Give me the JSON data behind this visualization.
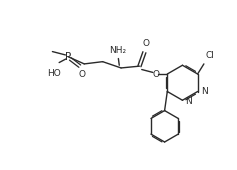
{
  "bg_color": "#ffffff",
  "line_color": "#2a2a2a",
  "lw": 1.0,
  "fs": 6.5,
  "xlim": [
    0,
    10.5
  ],
  "ylim": [
    0,
    7.5
  ]
}
